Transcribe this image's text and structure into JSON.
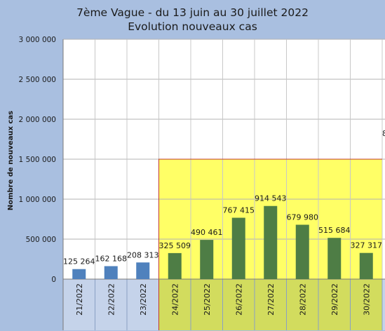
{
  "chart_data": {
    "type": "bar",
    "title": "7ème Vague - du 13 juin au 30 juillet 2022",
    "subtitle": "Evolution nouveaux cas",
    "ylabel": "Nombre de nouveaux cas",
    "xlabel": "",
    "ylim": [
      0,
      3000000
    ],
    "yticks": [
      0,
      500000,
      1000000,
      1500000,
      2000000,
      2500000,
      3000000
    ],
    "ytick_labels": [
      "0",
      "500 000",
      "1 000 000",
      "1 500 000",
      "2 000 000",
      "2 500 000",
      "3 000 000"
    ],
    "categories": [
      "21/2022",
      "22/2022",
      "23/2022",
      "24/2022",
      "25/2022",
      "26/2022",
      "27/2022",
      "28/2022",
      "29/2022",
      "30/2022"
    ],
    "values": [
      125264,
      162168,
      208313,
      325509,
      490461,
      767415,
      914543,
      679980,
      515684,
      327317
    ],
    "value_labels": [
      "125 264",
      "162 168",
      "208 313",
      "325 509",
      "490 461",
      "767 415",
      "914 543",
      "679 980",
      "515 684",
      "327 317"
    ],
    "bar_colors": [
      "#4f81bd",
      "#4f81bd",
      "#4f81bd",
      "#4e7d45",
      "#4e7d45",
      "#4e7d45",
      "#4e7d45",
      "#4e7d45",
      "#4e7d45",
      "#4e7d45"
    ],
    "highlight": {
      "from_category": "24/2022",
      "to_category": "30/2022",
      "ymax": 1500000,
      "fill": "#ffff66",
      "stroke": "#c0392b"
    },
    "grid": true,
    "clipped_text": "8"
  }
}
